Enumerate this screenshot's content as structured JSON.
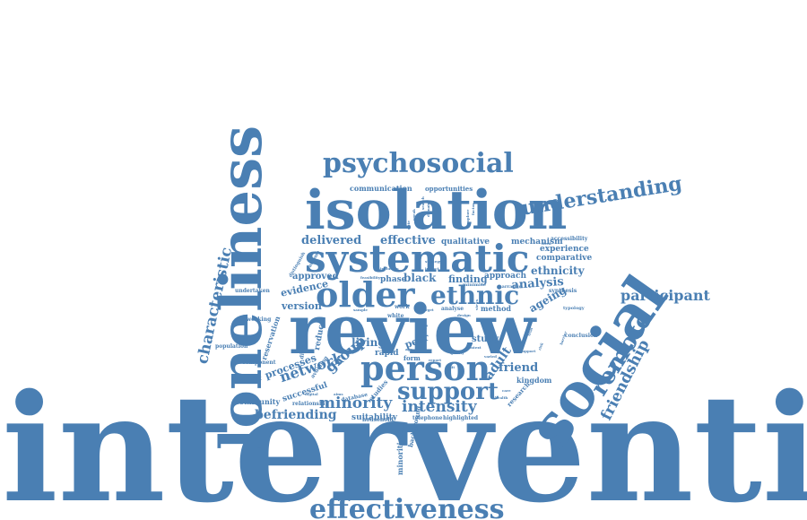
{
  "colors": {
    "word": "#4a7fb3",
    "background": "#ffffff"
  },
  "words": {
    "intervention": "intervention",
    "loneliness": "loneliness",
    "review": "review",
    "isolation": "isolation",
    "social": "social",
    "systematic": "systematic",
    "psychosocial": "psychosocial",
    "older": "older",
    "ethnic": "ethnic",
    "person": "person",
    "effectiveness": "effectiveness",
    "understanding": "understanding",
    "remote": "remote",
    "support": "support",
    "friendship": "friendship",
    "characteristic": "characteristic",
    "participant": "participant",
    "minority": "minority",
    "intensity": "intensity",
    "befriending": "befriending",
    "network": "network",
    "group": "group",
    "delivered": "delivered",
    "effective": "effective",
    "adult": "adult",
    "friend": "friend",
    "analysis": "analysis",
    "ethnicity": "ethnicity",
    "comparative": "comparative",
    "experience": "experience",
    "mechanism": "mechanism",
    "qualitative": "qualitative",
    "finding": "finding",
    "approach": "approach",
    "black": "black",
    "phase": "phase",
    "approved": "approved",
    "evidence": "evidence",
    "version": "version",
    "living": "living",
    "peer": "peer",
    "study": "study",
    "processes": "processes",
    "successful": "successful",
    "suitability": "suitability",
    "communication": "communication",
    "opportunities": "opportunities",
    "accessibility": "accessibility",
    "kingdom": "kingdom",
    "ageing": "ageing",
    "conclusion": "conclusion",
    "undertaken": "undertaken",
    "networking": "networking",
    "population": "population",
    "component": "component",
    "important": "important",
    "community": "community",
    "relationship": "relationship",
    "household": "household",
    "telephone": "telephone",
    "highlighted": "highlighted",
    "reservation": "reservation",
    "reduce": "reduce",
    "rapid": "rapid",
    "form": "form",
    "method": "method",
    "work": "work",
    "level": "level",
    "synthesis": "synthesis",
    "minimise": "minimise",
    "narrative": "narrative",
    "typology": "typology",
    "minoritised": "minoritised",
    "background": "background",
    "research": "research",
    "studies": "studies",
    "database": "database",
    "analyse": "analyse",
    "white": "white",
    "discussion": "discussion",
    "avoiding": "avoiding",
    "distinguish": "distinguish",
    "outcome": "outcome",
    "feasibility": "feasibility",
    "inclusion": "inclusion",
    "impact": "impact",
    "strategy": "strategy",
    "sample": "sample",
    "target": "target",
    "design": "design",
    "support2": "support",
    "varied": "varied",
    "context": "context",
    "quality": "quality",
    "report": "report",
    "unit": "unit",
    "digital": "digital",
    "aims": "aims",
    "health": "health",
    "care": "care",
    "lived": "lived",
    "speak": "speak",
    "note": "note",
    "search": "search",
    "domain": "domain",
    "explore": "explore",
    "factor": "factor",
    "views": "views",
    "trial": "trial",
    "risk": "risk",
    "barrier": "barrier",
    "age": "age"
  }
}
